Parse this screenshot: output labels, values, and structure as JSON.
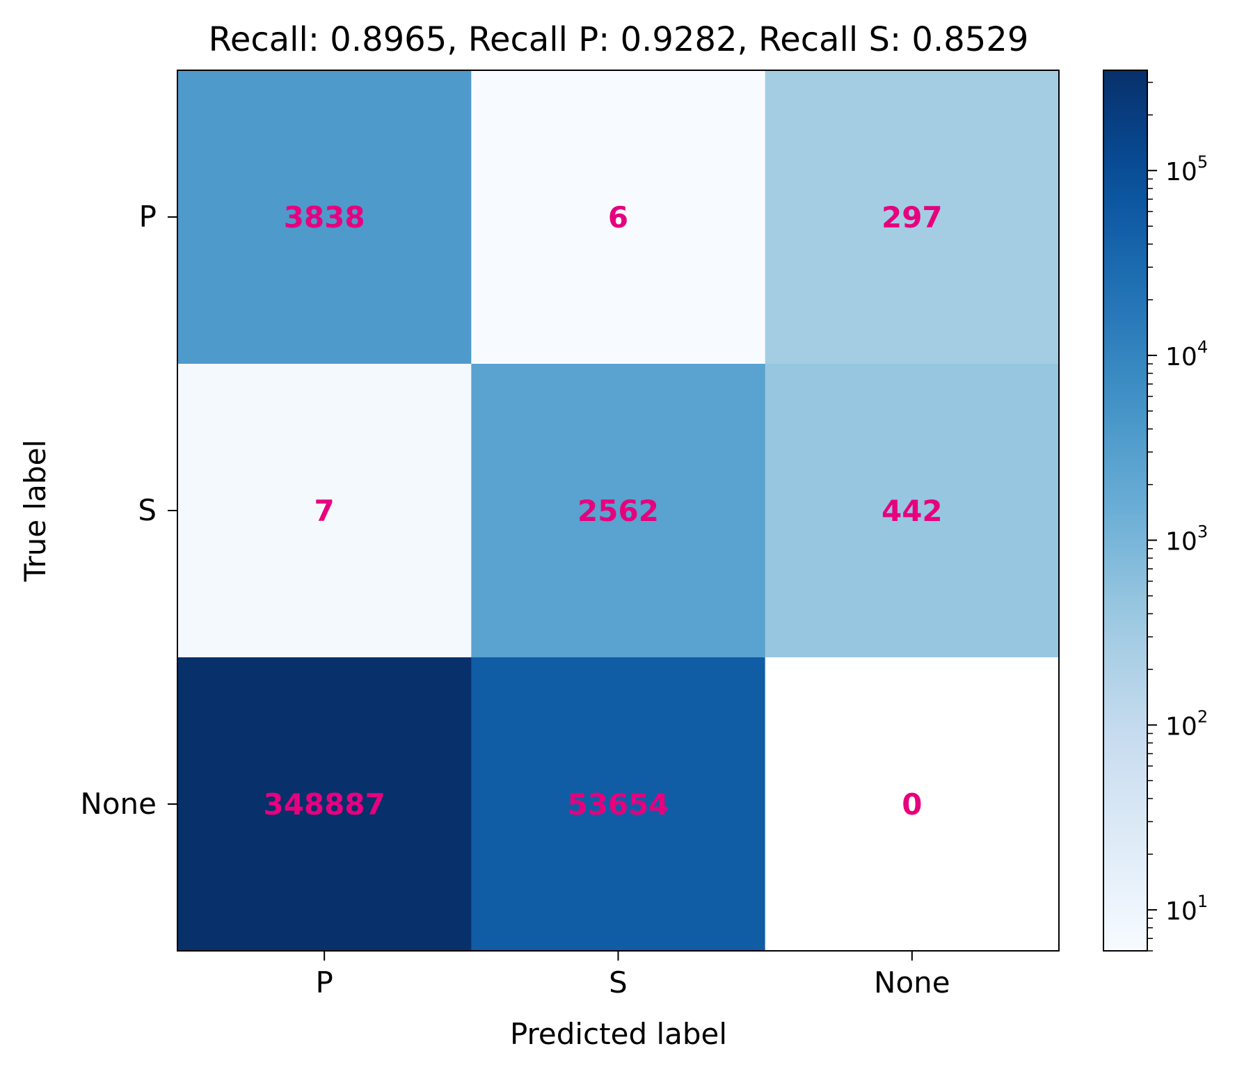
{
  "chart_data": {
    "type": "heatmap",
    "title": "Recall: 0.8965, Recall P: 0.9282, Recall S: 0.8529",
    "xlabel": "Predicted label",
    "ylabel": "True label",
    "x_categories": [
      "P",
      "S",
      "None"
    ],
    "y_categories": [
      "P",
      "S",
      "None"
    ],
    "matrix": [
      [
        3838,
        6,
        297
      ],
      [
        7,
        2562,
        442
      ],
      [
        348887,
        53654,
        0
      ]
    ],
    "colormap": "Blues",
    "color_scale": "log",
    "colorbar": {
      "range": [
        6,
        348887
      ],
      "ticks": [
        {
          "base": "10",
          "exp": "1",
          "value": 10
        },
        {
          "base": "10",
          "exp": "2",
          "value": 100
        },
        {
          "base": "10",
          "exp": "3",
          "value": 1000
        },
        {
          "base": "10",
          "exp": "4",
          "value": 10000
        },
        {
          "base": "10",
          "exp": "5",
          "value": 100000
        }
      ]
    },
    "annotation_color": "#e6007e",
    "grid": false
  }
}
